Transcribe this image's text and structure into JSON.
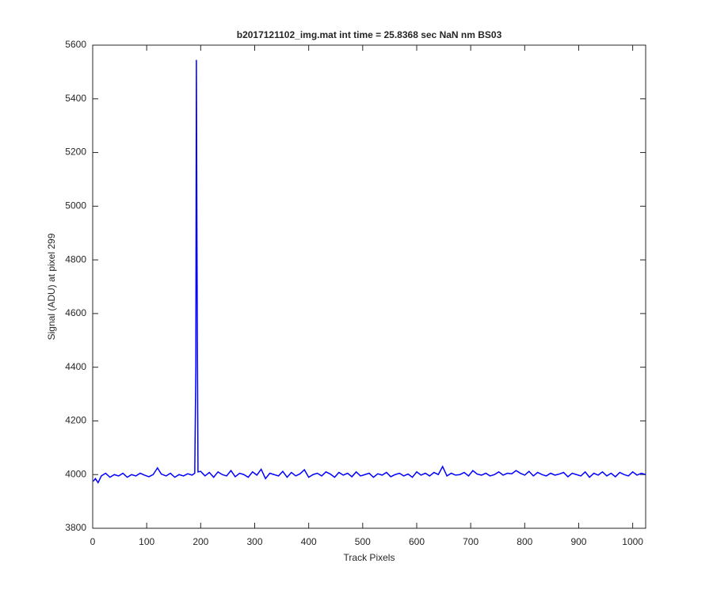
{
  "chart_data": {
    "type": "line",
    "title": "b2017121102_img.mat int time = 25.8368 sec  NaN nm BS03",
    "x_label": "Track Pixels",
    "y_label": "Signal (ADU) at pixel 299",
    "xlim": [
      0,
      1024
    ],
    "xticks": [
      0,
      100,
      200,
      300,
      400,
      500,
      600,
      700,
      800,
      900,
      1000
    ],
    "ylim": [
      3800,
      5600
    ],
    "yticks": [
      3800,
      4000,
      4200,
      4400,
      4600,
      4800,
      5000,
      5200,
      5400,
      5600
    ],
    "x": [
      1,
      5,
      10,
      16,
      24,
      32,
      40,
      48,
      56,
      64,
      72,
      80,
      88,
      96,
      104,
      112,
      120,
      127,
      136,
      144,
      152,
      160,
      168,
      176,
      184,
      189,
      191,
      192,
      193,
      195,
      200,
      208,
      216,
      224,
      232,
      240,
      248,
      256,
      264,
      272,
      280,
      288,
      296,
      304,
      312,
      320,
      328,
      336,
      344,
      352,
      360,
      368,
      376,
      384,
      392,
      400,
      408,
      416,
      424,
      432,
      440,
      448,
      456,
      464,
      472,
      480,
      488,
      496,
      504,
      512,
      520,
      528,
      536,
      544,
      552,
      560,
      568,
      576,
      584,
      592,
      600,
      608,
      616,
      624,
      632,
      640,
      648,
      656,
      664,
      672,
      680,
      688,
      696,
      704,
      712,
      720,
      728,
      736,
      744,
      752,
      760,
      768,
      776,
      784,
      792,
      800,
      808,
      816,
      824,
      832,
      840,
      848,
      856,
      864,
      872,
      880,
      888,
      896,
      904,
      912,
      920,
      928,
      936,
      944,
      952,
      960,
      968,
      976,
      984,
      992,
      1000,
      1008,
      1016,
      1024
    ],
    "series": [
      {
        "color": "#0000ff",
        "values": [
          3975,
          3985,
          3970,
          3995,
          4005,
          3990,
          4000,
          3995,
          4005,
          3990,
          4000,
          3995,
          4005,
          3998,
          3992,
          4000,
          4025,
          4002,
          3995,
          4005,
          3990,
          4000,
          3995,
          4003,
          3998,
          4005,
          4400,
          5545,
          4900,
          4010,
          4012,
          3995,
          4008,
          3990,
          4010,
          4000,
          3995,
          4015,
          3992,
          4005,
          4000,
          3990,
          4010,
          3998,
          4020,
          3985,
          4005,
          4000,
          3995,
          4012,
          3990,
          4008,
          3995,
          4003,
          4018,
          3990,
          4000,
          4005,
          3995,
          4010,
          4002,
          3990,
          4008,
          3998,
          4005,
          3992,
          4010,
          3995,
          4000,
          4005,
          3990,
          4003,
          3998,
          4008,
          3992,
          4000,
          4005,
          3995,
          4002,
          3990,
          4010,
          3998,
          4005,
          3995,
          4008,
          4000,
          4030,
          3995,
          4005,
          3998,
          4000,
          4008,
          3995,
          4015,
          4002,
          3998,
          4005,
          3995,
          4000,
          4010,
          3998,
          4005,
          4003,
          4015,
          4005,
          3998,
          4012,
          3995,
          4008,
          4000,
          3995,
          4005,
          3998,
          4002,
          4008,
          3992,
          4005,
          4000,
          3995,
          4010,
          3990,
          4005,
          3998,
          4010,
          3995,
          4005,
          3992,
          4008,
          4000,
          3995,
          4010,
          3998,
          4005,
          4000
        ]
      }
    ]
  }
}
